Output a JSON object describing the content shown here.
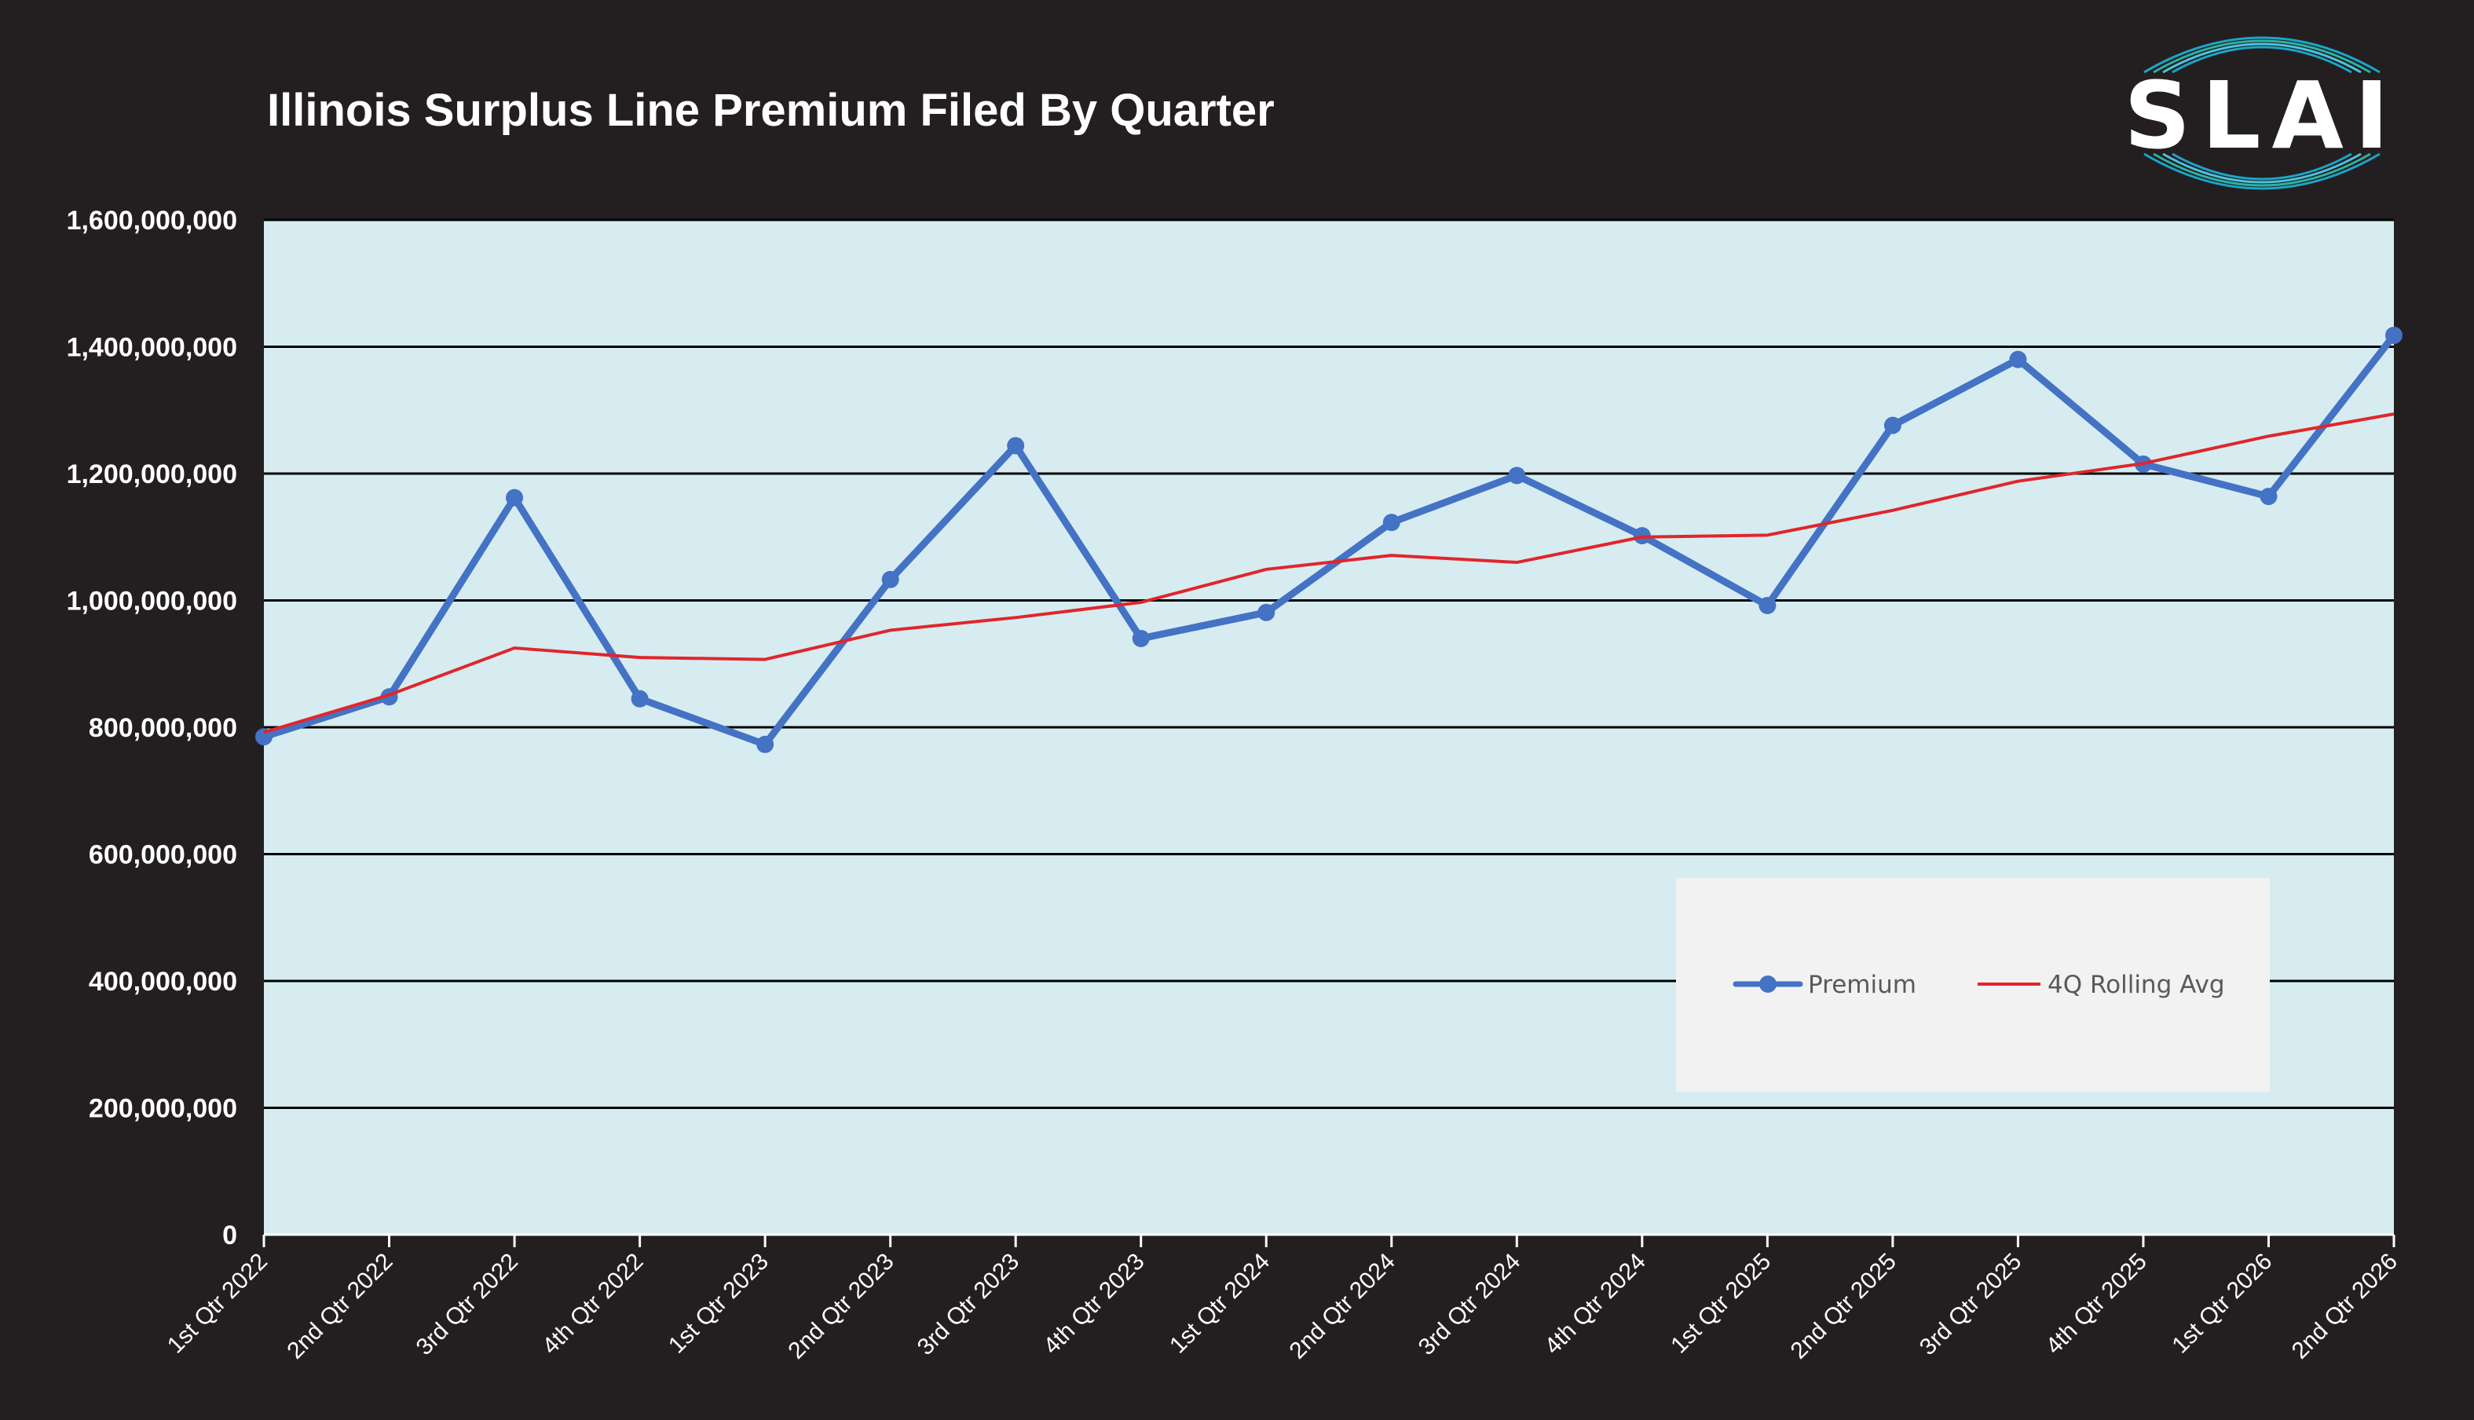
{
  "logo": {
    "text": "SLAI",
    "ring_colors": [
      "#1aa6c9",
      "#2bb3a4",
      "#4cc3e0"
    ]
  },
  "chart_data": {
    "type": "line",
    "title": "Illinois Surplus Line Premium Filed By Quarter",
    "categories": [
      "1st Qtr 2022",
      "2nd Qtr 2022",
      "3rd Qtr 2022",
      "4th Qtr 2022",
      "1st Qtr 2023",
      "2nd Qtr 2023",
      "3rd Qtr 2023",
      "4th Qtr 2023",
      "1st Qtr 2024",
      "2nd Qtr 2024",
      "3rd Qtr 2024",
      "4th Qtr 2024",
      "1st Qtr 2025",
      "2nd Qtr 2025",
      "3rd Qtr 2025",
      "4th Qtr 2025",
      "1st Qtr 2026",
      "2nd Qtr 2026"
    ],
    "series": [
      {
        "name": "Premium",
        "color": "#4472c4",
        "markers": true,
        "values": [
          785000000,
          848000000,
          1162000000,
          845000000,
          773000000,
          1033000000,
          1244000000,
          940000000,
          981000000,
          1123000000,
          1197000000,
          1102000000,
          992000000,
          1276000000,
          1380000000,
          1215000000,
          1164000000,
          1418000000
        ]
      },
      {
        "name": "4Q Rolling Avg",
        "color": "#e0262b",
        "markers": false,
        "values": [
          792000000,
          851000000,
          925000000,
          910000000,
          907000000,
          953000000,
          973000000,
          997000000,
          1049000000,
          1071000000,
          1060000000,
          1100000000,
          1103000000,
          1142000000,
          1188000000,
          1216000000,
          1259000000,
          1294000000
        ]
      }
    ],
    "ylim": [
      0,
      1600000000
    ],
    "yticks": [
      0,
      200000000,
      400000000,
      600000000,
      800000000,
      1000000000,
      1200000000,
      1400000000,
      1600000000
    ],
    "ytick_labels": [
      "0",
      "200,000,000",
      "400,000,000",
      "600,000,000",
      "800,000,000",
      "1,000,000,000",
      "1,200,000,000",
      "1,400,000,000",
      "1,600,000,000"
    ],
    "grid": true,
    "legend_position": "bottom-right",
    "plot_background": "#d6ecf1",
    "page_background": "#231f20"
  }
}
